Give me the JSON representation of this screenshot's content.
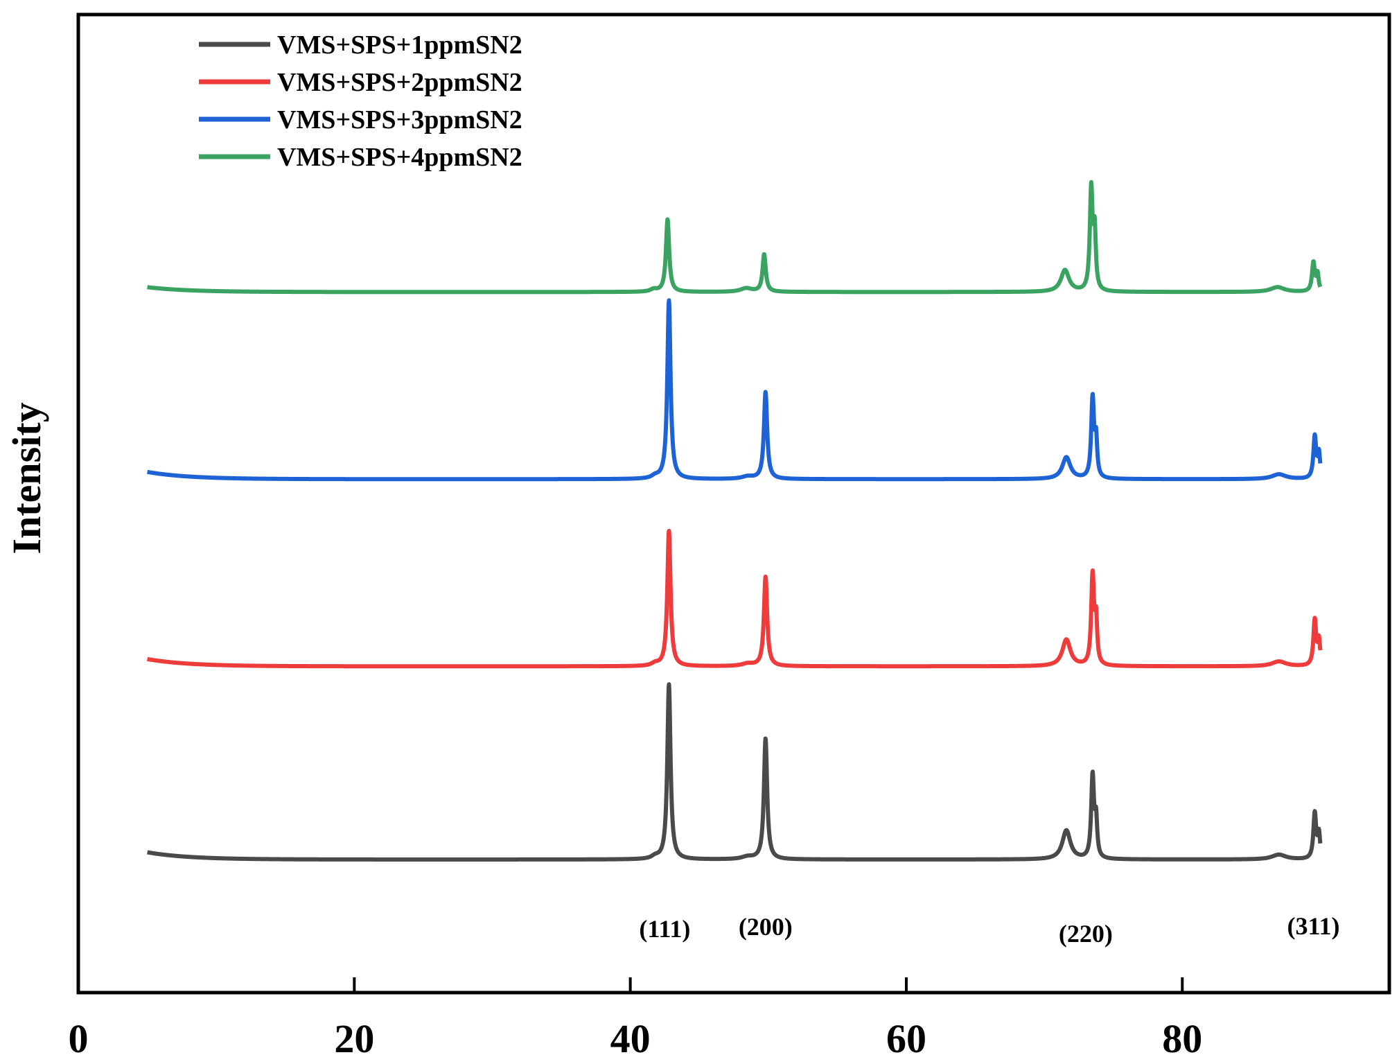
{
  "chart_data": {
    "type": "line",
    "title": "",
    "xlabel": "",
    "ylabel": "Intensity",
    "xlim": [
      0,
      95
    ],
    "xticks": [
      0,
      20,
      40,
      60,
      80
    ],
    "yticks_shown": false,
    "grid": false,
    "legend_position": "top-left",
    "x_range": [
      5,
      90
    ],
    "series": [
      {
        "name": "VMS+SPS+1ppmSN2",
        "color": "#4a4a4a",
        "baseline": 0,
        "start_rise": 6,
        "peaks": [
          {
            "x": 42.8,
            "h": 145,
            "w": 0.14
          },
          {
            "x": 49.8,
            "h": 100,
            "w": 0.14
          },
          {
            "x": 71.6,
            "h": 24,
            "w": 0.35
          },
          {
            "x": 73.5,
            "h": 68,
            "w": 0.12
          },
          {
            "x": 73.75,
            "h": 30,
            "w": 0.1
          },
          {
            "x": 89.6,
            "h": 38,
            "w": 0.12
          },
          {
            "x": 89.9,
            "h": 20,
            "w": 0.1
          },
          {
            "x": 41.8,
            "h": 2,
            "w": 0.3
          },
          {
            "x": 48.5,
            "h": 2,
            "w": 0.5
          },
          {
            "x": 87.0,
            "h": 4,
            "w": 0.6
          }
        ]
      },
      {
        "name": "VMS+SPS+2ppmSN2",
        "color": "#ee3b3b",
        "baseline": 160,
        "start_rise": 6,
        "peaks": [
          {
            "x": 42.8,
            "h": 112,
            "w": 0.14
          },
          {
            "x": 49.8,
            "h": 74,
            "w": 0.14
          },
          {
            "x": 71.6,
            "h": 22,
            "w": 0.35
          },
          {
            "x": 73.5,
            "h": 74,
            "w": 0.12
          },
          {
            "x": 73.75,
            "h": 35,
            "w": 0.1
          },
          {
            "x": 89.6,
            "h": 38,
            "w": 0.12
          },
          {
            "x": 89.9,
            "h": 20,
            "w": 0.1
          },
          {
            "x": 41.8,
            "h": 2,
            "w": 0.3
          },
          {
            "x": 48.5,
            "h": 2,
            "w": 0.5
          },
          {
            "x": 87.0,
            "h": 4,
            "w": 0.6
          }
        ]
      },
      {
        "name": "VMS+SPS+3ppmSN2",
        "color": "#1e63d6",
        "baseline": 315,
        "start_rise": 6,
        "peaks": [
          {
            "x": 42.8,
            "h": 148,
            "w": 0.14
          },
          {
            "x": 49.8,
            "h": 72,
            "w": 0.14
          },
          {
            "x": 71.6,
            "h": 18,
            "w": 0.35
          },
          {
            "x": 73.5,
            "h": 66,
            "w": 0.12
          },
          {
            "x": 73.75,
            "h": 30,
            "w": 0.1
          },
          {
            "x": 89.6,
            "h": 35,
            "w": 0.12
          },
          {
            "x": 89.9,
            "h": 20,
            "w": 0.1
          },
          {
            "x": 41.8,
            "h": 2,
            "w": 0.3
          },
          {
            "x": 48.5,
            "h": 2,
            "w": 0.5
          },
          {
            "x": 87.0,
            "h": 4,
            "w": 0.6
          }
        ]
      },
      {
        "name": "VMS+SPS+4ppmSN2",
        "color": "#3aa361",
        "baseline": 470,
        "start_rise": 4,
        "peaks": [
          {
            "x": 42.7,
            "h": 60,
            "w": 0.14
          },
          {
            "x": 49.7,
            "h": 31,
            "w": 0.14
          },
          {
            "x": 71.5,
            "h": 18,
            "w": 0.35
          },
          {
            "x": 73.4,
            "h": 84,
            "w": 0.12
          },
          {
            "x": 73.65,
            "h": 46,
            "w": 0.1
          },
          {
            "x": 89.5,
            "h": 24,
            "w": 0.12
          },
          {
            "x": 89.8,
            "h": 14,
            "w": 0.1
          },
          {
            "x": 41.7,
            "h": 2,
            "w": 0.3
          },
          {
            "x": 48.4,
            "h": 3,
            "w": 0.5
          },
          {
            "x": 86.9,
            "h": 4,
            "w": 0.6
          }
        ]
      }
    ],
    "y_internal_max": 620,
    "annotations": [
      {
        "text": "(111)",
        "x": 42.5
      },
      {
        "text": "(200)",
        "x": 49.8
      },
      {
        "text": "(220)",
        "x": 73.0
      },
      {
        "text": "(311)",
        "x": 89.5
      }
    ]
  }
}
